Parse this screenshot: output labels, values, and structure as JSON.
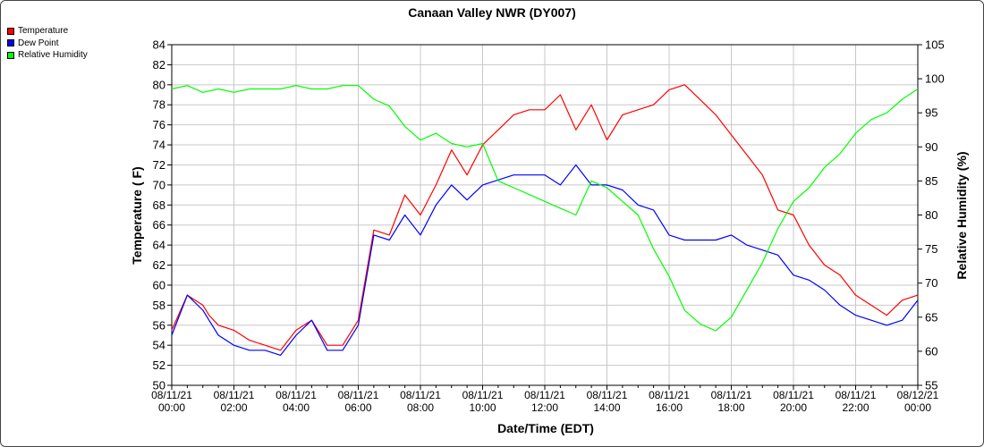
{
  "chart_data": {
    "type": "line",
    "title": "Canaan Valley NWR (DY007)",
    "xlabel": "Date/Time (EDT)",
    "ylabel": "Temperature ( F)",
    "y2label": "Relative Humidity (%)",
    "ylim": [
      50,
      84
    ],
    "y2lim": [
      55,
      105
    ],
    "xlim": [
      0,
      24
    ],
    "grid": true,
    "legend_position": "top-left",
    "x_ticks": [
      {
        "date": "08/11/21",
        "time": "00:00"
      },
      {
        "date": "08/11/21",
        "time": "02:00"
      },
      {
        "date": "08/11/21",
        "time": "04:00"
      },
      {
        "date": "08/11/21",
        "time": "06:00"
      },
      {
        "date": "08/11/21",
        "time": "08:00"
      },
      {
        "date": "08/11/21",
        "time": "10:00"
      },
      {
        "date": "08/11/21",
        "time": "12:00"
      },
      {
        "date": "08/11/21",
        "time": "14:00"
      },
      {
        "date": "08/11/21",
        "time": "16:00"
      },
      {
        "date": "08/11/21",
        "time": "18:00"
      },
      {
        "date": "08/11/21",
        "time": "20:00"
      },
      {
        "date": "08/11/21",
        "time": "22:00"
      },
      {
        "date": "08/12/21",
        "time": "00:00"
      }
    ],
    "y_ticks": [
      "50",
      "52",
      "54",
      "56",
      "58",
      "60",
      "62",
      "64",
      "66",
      "68",
      "70",
      "72",
      "74",
      "76",
      "78",
      "80",
      "82",
      "84"
    ],
    "y2_ticks": [
      "55",
      "60",
      "65",
      "70",
      "75",
      "80",
      "85",
      "90",
      "95",
      "100",
      "105"
    ],
    "series": [
      {
        "name": "Temperature",
        "color": "#ff0000",
        "axis": "left",
        "x": [
          0,
          0.5,
          1,
          1.2,
          1.5,
          2,
          2.5,
          3,
          3.5,
          4,
          4.5,
          5,
          5.5,
          6,
          6.5,
          7,
          7.5,
          8,
          8.5,
          9,
          9.5,
          10,
          10.5,
          11,
          11.5,
          12,
          12.5,
          13,
          13.5,
          14,
          14.5,
          15,
          15.5,
          16,
          16.5,
          17,
          17.5,
          18,
          18.5,
          19,
          19.5,
          20,
          20.5,
          21,
          21.5,
          22,
          22.5,
          23,
          23.5,
          24
        ],
        "values": [
          55.5,
          59,
          58,
          57,
          56,
          55.5,
          54.5,
          54,
          53.5,
          55.5,
          56.5,
          54,
          54,
          56.5,
          65.5,
          65,
          69,
          67,
          70,
          73.5,
          71,
          74,
          75.5,
          77,
          77.5,
          77.5,
          79,
          75.5,
          78,
          74.5,
          77,
          77.5,
          78,
          79.5,
          80,
          78.5,
          77,
          75,
          73,
          71,
          67.5,
          67,
          64,
          62,
          61,
          59,
          58,
          57,
          58.5,
          59
        ]
      },
      {
        "name": "Dew Point",
        "color": "#0000ff",
        "axis": "left",
        "x": [
          0,
          0.5,
          1,
          1.2,
          1.5,
          2,
          2.5,
          3,
          3.5,
          4,
          4.5,
          5,
          5.5,
          6,
          6.5,
          7,
          7.5,
          8,
          8.5,
          9,
          9.5,
          10,
          10.5,
          11,
          11.5,
          12,
          12.5,
          13,
          13.5,
          14,
          14.5,
          15,
          15.5,
          16,
          16.5,
          17,
          17.5,
          18,
          18.5,
          19,
          19.5,
          20,
          20.5,
          21,
          21.5,
          22,
          22.5,
          23,
          23.5,
          24
        ],
        "values": [
          55,
          59,
          57.5,
          56.5,
          55,
          54,
          53.5,
          53.5,
          53,
          55,
          56.5,
          53.5,
          53.5,
          56,
          65,
          64.5,
          67,
          65,
          68,
          70,
          68.5,
          70,
          70.5,
          71,
          71,
          71,
          70,
          72,
          70,
          70,
          69.5,
          68,
          67.5,
          65,
          64.5,
          64.5,
          64.5,
          65,
          64,
          63.5,
          63,
          61,
          60.5,
          59.5,
          58,
          57,
          56.5,
          56,
          56.5,
          58.5
        ]
      },
      {
        "name": "Relative Humidity",
        "color": "#00ff00",
        "axis": "right",
        "x": [
          0,
          0.5,
          1,
          1.5,
          2,
          2.5,
          3,
          3.5,
          4,
          4.5,
          5,
          5.5,
          6,
          6.5,
          7,
          7.5,
          8,
          8.5,
          9,
          9.5,
          10,
          10.5,
          11,
          11.5,
          12,
          12.5,
          13,
          13.5,
          14,
          14.5,
          15,
          15.5,
          16,
          16.5,
          17,
          17.5,
          18,
          18.5,
          19,
          19.5,
          20,
          20.5,
          21,
          21.5,
          22,
          22.5,
          23,
          23.5,
          24
        ],
        "values": [
          98.5,
          99,
          98,
          98.5,
          98,
          98.5,
          98.5,
          98.5,
          99,
          98.5,
          98.5,
          99,
          99,
          97,
          96,
          93,
          91,
          92,
          90.5,
          90,
          90.5,
          85,
          84,
          83,
          82,
          81,
          80,
          85,
          84,
          82,
          80,
          75,
          71,
          66,
          64,
          63,
          65,
          69,
          73,
          78,
          82,
          84,
          87,
          89,
          92,
          94,
          95,
          97,
          98.5
        ]
      }
    ]
  }
}
